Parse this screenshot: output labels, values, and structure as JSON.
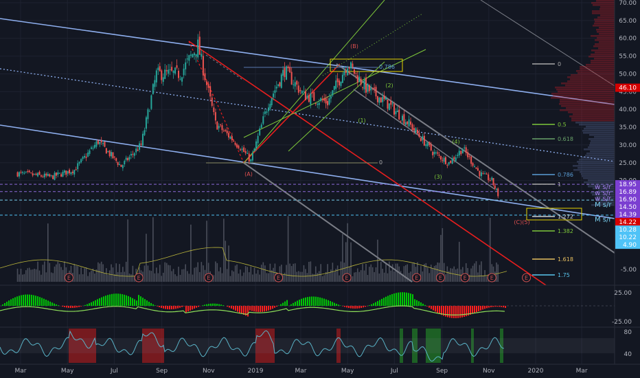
{
  "colors": {
    "background": "#131722",
    "up_candle": "#26a69a",
    "down_candle": "#ef5350",
    "channel_blue": "#8fb0f0",
    "fork_red": "#e81e1e",
    "fork_green": "#7ec83a",
    "gray_line": "#7a7d86",
    "price_badge": "#d50000",
    "sr_purple": "#7b3fd1",
    "sr_cyan": "#4fc3f7",
    "rsi_line": "#5ab4c8",
    "macd_green": "#00c805",
    "macd_red": "#ff1e1e"
  },
  "chart_data": {
    "type": "candlestick",
    "x_axis_labels": [
      "Mar",
      "May",
      "Jul",
      "Sep",
      "Nov",
      "2019",
      "Mar",
      "May",
      "Jul",
      "Sep",
      "Nov",
      "2020",
      "Mar"
    ],
    "y_axis_labels": [
      "70.00",
      "65.00",
      "60.00",
      "55.00",
      "50.00",
      "45.00",
      "40.00",
      "35.00",
      "30.00",
      "25.00",
      "20.00"
    ],
    "ylim": [
      -6,
      70
    ],
    "price_path": [
      {
        "date": "2018-02-25",
        "price": 22
      },
      {
        "date": "2018-04-10",
        "price": 21
      },
      {
        "date": "2018-05-10",
        "price": 23
      },
      {
        "date": "2018-06-10",
        "price": 31
      },
      {
        "date": "2018-07-10",
        "price": 24
      },
      {
        "date": "2018-08-05",
        "price": 30
      },
      {
        "date": "2018-08-25",
        "price": 50
      },
      {
        "date": "2018-09-25",
        "price": 50
      },
      {
        "date": "2018-10-18",
        "price": 58
      },
      {
        "date": "2018-11-10",
        "price": 36
      },
      {
        "date": "2018-12-10",
        "price": 30
      },
      {
        "date": "2018-12-26",
        "price": 25.5
      },
      {
        "date": "2019-01-18",
        "price": 42
      },
      {
        "date": "2019-02-08",
        "price": 51
      },
      {
        "date": "2019-03-05",
        "price": 44
      },
      {
        "date": "2019-04-05",
        "price": 42
      },
      {
        "date": "2019-05-01",
        "price": 53
      },
      {
        "date": "2019-05-25",
        "price": 46
      },
      {
        "date": "2019-06-20",
        "price": 42
      },
      {
        "date": "2019-07-20",
        "price": 36
      },
      {
        "date": "2019-08-20",
        "price": 28
      },
      {
        "date": "2019-09-10",
        "price": 25
      },
      {
        "date": "2019-09-28",
        "price": 29
      },
      {
        "date": "2019-10-20",
        "price": 22
      },
      {
        "date": "2019-11-05",
        "price": 20
      },
      {
        "date": "2019-11-13",
        "price": 16
      }
    ],
    "wave_labels": [
      "(A)",
      "(B)",
      "(1)",
      "(2)",
      "(3)",
      "(4)",
      "(C)(5)"
    ],
    "fib_left_labels": [
      "0.786",
      "0"
    ],
    "fib_right_labels": [
      "0",
      "0.5",
      "0.618",
      "0.786",
      "1",
      "1.272",
      "1.382",
      "1.618",
      "1.75"
    ],
    "earnings_marker": "E",
    "earnings_dates": [
      "2018-05-03",
      "2018-08-02",
      "2018-11-01",
      "2019-01-31",
      "2019-04-30",
      "2019-07-30",
      "2019-08-30",
      "2019-10-01",
      "2019-11-05",
      "2019-12-20"
    ],
    "price_scale_badges": [
      {
        "text": "46.10",
        "price": 46.1,
        "bg": "#d50000"
      },
      {
        "text": "18.95",
        "price": 18.95,
        "bg": "#7b3fd1"
      },
      {
        "text": "16.89",
        "price": 16.89,
        "bg": "#7b3fd1"
      },
      {
        "text": "16.90",
        "price": 16.9,
        "bg": "#7b3fd1"
      },
      {
        "text": "14.50",
        "price": 14.5,
        "bg": "#7b3fd1"
      },
      {
        "text": "14.39",
        "price": 14.39,
        "bg": "#7b3fd1"
      },
      {
        "text": "14.22",
        "price": 14.22,
        "bg": "#d50000"
      },
      {
        "text": "10.28",
        "price": 10.28,
        "bg": "#4fc3f7"
      },
      {
        "text": "10.22",
        "price": 10.22,
        "bg": "#4fc3f7"
      },
      {
        "text": "4.90",
        "price": 4.9,
        "bg": "#4fc3f7"
      },
      {
        "text": "-5.00",
        "price": -5,
        "bg": ""
      }
    ],
    "sr_labels": [
      {
        "text": "w s/r",
        "price": 18.2
      },
      {
        "text": "w s/r",
        "price": 16.5
      },
      {
        "text": "w s/r",
        "price": 14.9
      },
      {
        "text": "M s/r",
        "price": 13.2
      },
      {
        "text": "M s/r",
        "price": 9.0
      }
    ],
    "macd_axis_labels": [
      "25.00",
      "-25.00"
    ],
    "rsi_axis_labels": [
      "80",
      "40"
    ]
  }
}
